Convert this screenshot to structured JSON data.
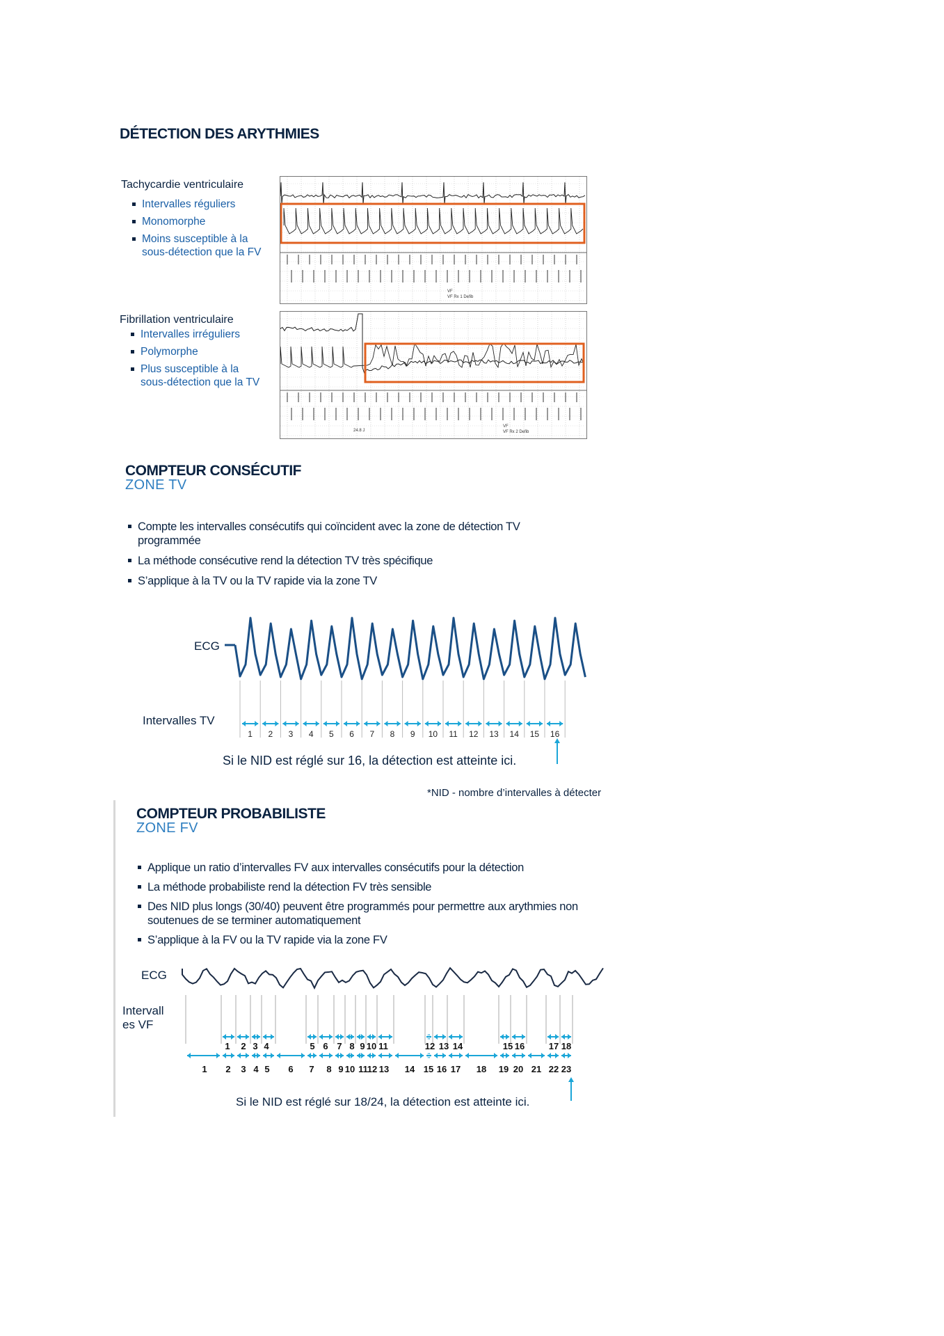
{
  "section1": {
    "title": "DÉTECTION DES ARYTHMIES",
    "vt": {
      "label": "Tachycardie ventriculaire",
      "bullets": [
        "Intervalles réguliers",
        "Monomorphe",
        "Moins susceptible à la sous-détection que la FV"
      ],
      "strip_marks": [
        "VF",
        "VF Rx 1 Defib"
      ]
    },
    "vf": {
      "label": "Fibrillation ventriculaire",
      "bullets": [
        "Intervalles irréguliers",
        "Polymorphe",
        "Plus susceptible à la sous-détection que la TV"
      ],
      "strip_marks": [
        "24.8 J",
        "VF",
        "VF Rx 2 Defib"
      ]
    },
    "highlight_color": "#e06020"
  },
  "section2": {
    "title": "COMPTEUR CONSÉCUTIF",
    "subtitle": "ZONE TV",
    "bullets": [
      "Compte les intervalles consécutifs qui coïncident avec la zone de détection TV programmée",
      "La méthode consécutive rend la détection TV très spécifique",
      "S’applique à la TV ou la TV rapide via la zone TV"
    ],
    "ecg_label": "ECG",
    "intervals_label": "Intervalles TV",
    "interval_numbers": [
      "1",
      "2",
      "3",
      "4",
      "5",
      "6",
      "7",
      "8",
      "9",
      "10",
      "11",
      "12",
      "13",
      "14",
      "15",
      "16"
    ],
    "caption": "Si le NID est réglé sur 16, la détection est atteinte ici.",
    "footnote": "*NID - nombre d’intervalles à détecter",
    "ecg_color": "#1a4f86",
    "arrow_color": "#1ba6d8"
  },
  "section3": {
    "title": "COMPTEUR PROBABILISTE",
    "subtitle": "ZONE FV",
    "bullets": [
      "Applique un ratio d’intervalles FV aux intervalles consécutifs pour la détection",
      "La méthode probabiliste rend la détection FV très sensible",
      "Des NID plus longs (30/40) peuvent être programmés pour permettre aux arythmies non soutenues de se terminer automatiquement",
      "S’applique à la FV ou la TV rapide via la zone FV"
    ],
    "ecg_label": "ECG",
    "intervals_label_line1": "Intervall",
    "intervals_label_line2": "es VF",
    "row1_numbers": [
      "1",
      "2",
      "3",
      "4",
      "5",
      "6",
      "7",
      "8",
      "9",
      "10",
      "11",
      "12",
      "13",
      "14",
      "15",
      "16",
      "17",
      "18"
    ],
    "row2_numbers": [
      "1",
      "2",
      "3",
      "4",
      "5",
      "6",
      "7",
      "8",
      "9",
      "10",
      "11",
      "12",
      "13",
      "14",
      "15",
      "16",
      "17",
      "18",
      "19",
      "20",
      "21",
      "22",
      "23"
    ],
    "caption": "Si le NID est réglé sur 18/24, la détection est atteinte ici."
  }
}
